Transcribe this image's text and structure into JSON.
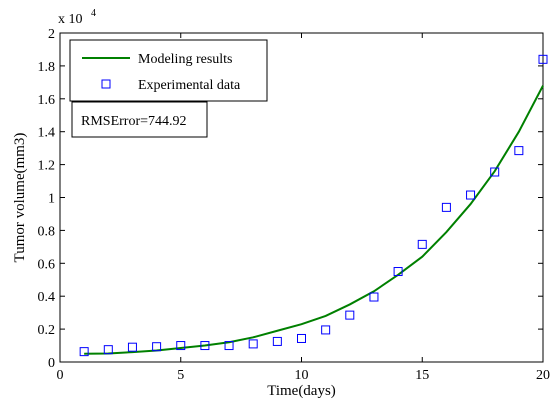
{
  "chart_data": {
    "type": "line",
    "xlabel": "Time(days)",
    "ylabel": "Tumor volume(mm3)",
    "y_multiplier": {
      "base": "x 10",
      "exponent": "4"
    },
    "xlim": [
      0,
      20
    ],
    "ylim": [
      0,
      2
    ],
    "xticks": [
      0,
      5,
      10,
      15,
      20
    ],
    "xtick_labels": [
      "0",
      "5",
      "10",
      "15",
      "20"
    ],
    "yticks": [
      0,
      0.2,
      0.4,
      0.6,
      0.8,
      1.0,
      1.2,
      1.4,
      1.6,
      1.8,
      2.0
    ],
    "ytick_labels": [
      "0",
      "0.2",
      "0.4",
      "0.6",
      "0.8",
      "1",
      "1.2",
      "1.4",
      "1.6",
      "1.8",
      "2"
    ],
    "grid": false,
    "legend_position": "top-left",
    "series": [
      {
        "name": "Modeling results",
        "kind": "line",
        "color": "#008000",
        "x": [
          1,
          2,
          3,
          4,
          5,
          6,
          7,
          8,
          9,
          10,
          11,
          12,
          13,
          14,
          15,
          16,
          17,
          18,
          19,
          20
        ],
        "y": [
          0.05,
          0.052,
          0.06,
          0.07,
          0.085,
          0.1,
          0.12,
          0.15,
          0.19,
          0.23,
          0.28,
          0.35,
          0.43,
          0.53,
          0.64,
          0.79,
          0.96,
          1.16,
          1.4,
          1.68
        ]
      },
      {
        "name": "Experimental data",
        "kind": "marker",
        "marker": "square",
        "color": "#0000ff",
        "x": [
          1,
          2,
          3,
          4,
          5,
          6,
          7,
          8,
          9,
          10,
          11,
          12,
          13,
          14,
          15,
          16,
          17,
          18,
          19,
          20
        ],
        "y": [
          0.063,
          0.075,
          0.09,
          0.093,
          0.1,
          0.1,
          0.1,
          0.11,
          0.125,
          0.143,
          0.195,
          0.285,
          0.395,
          0.55,
          0.715,
          0.94,
          1.015,
          1.155,
          1.285,
          1.84
        ]
      }
    ],
    "annotation": "RMSError=744.92"
  }
}
